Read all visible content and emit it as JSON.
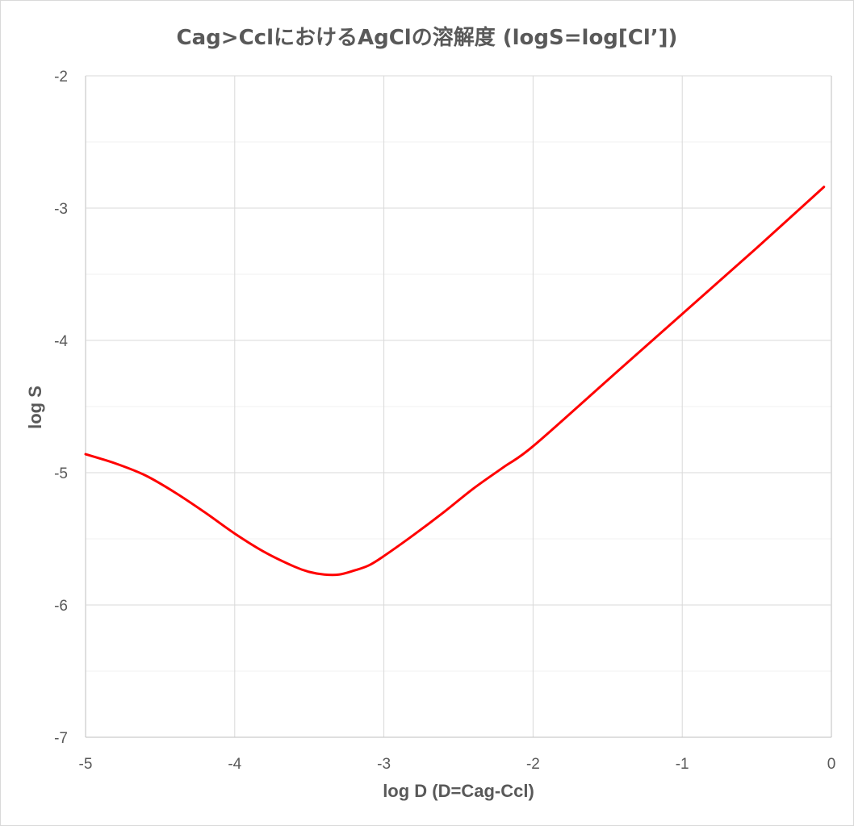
{
  "chart_data": {
    "type": "line",
    "title": "Cag>CclにおけるAgClの溶解度 (logS=log[Cl’])",
    "xlabel": "log D (D=Cag-Ccl)",
    "ylabel": "log S",
    "xlim": [
      -5,
      0
    ],
    "ylim": [
      -7,
      -2
    ],
    "x_ticks": [
      -5,
      -4,
      -3,
      -2,
      -1,
      0
    ],
    "y_ticks": [
      -2,
      -3,
      -4,
      -5,
      -6,
      -7
    ],
    "x_tick_labels": [
      "-5",
      "-4",
      "-3",
      "-2",
      "-1",
      "0"
    ],
    "y_tick_labels": [
      "-2",
      "-3",
      "-4",
      "-5",
      "-6",
      "-7"
    ],
    "grid": true,
    "minor_y_grid_step": 0.5,
    "legend": "none",
    "series": [
      {
        "color": "#ff0000",
        "x": [
          -5.0,
          -4.8,
          -4.6,
          -4.4,
          -4.2,
          -4.0,
          -3.8,
          -3.6,
          -3.5,
          -3.4,
          -3.3,
          -3.2,
          -3.1,
          -3.0,
          -2.8,
          -2.6,
          -2.4,
          -2.2,
          -2.0,
          -1.5,
          -1.0,
          -0.5,
          -0.05
        ],
        "y": [
          -4.86,
          -4.93,
          -5.02,
          -5.15,
          -5.3,
          -5.46,
          -5.6,
          -5.71,
          -5.75,
          -5.77,
          -5.77,
          -5.74,
          -5.7,
          -5.63,
          -5.47,
          -5.3,
          -5.12,
          -4.96,
          -4.8,
          -4.3,
          -3.8,
          -3.3,
          -2.84
        ]
      }
    ]
  }
}
